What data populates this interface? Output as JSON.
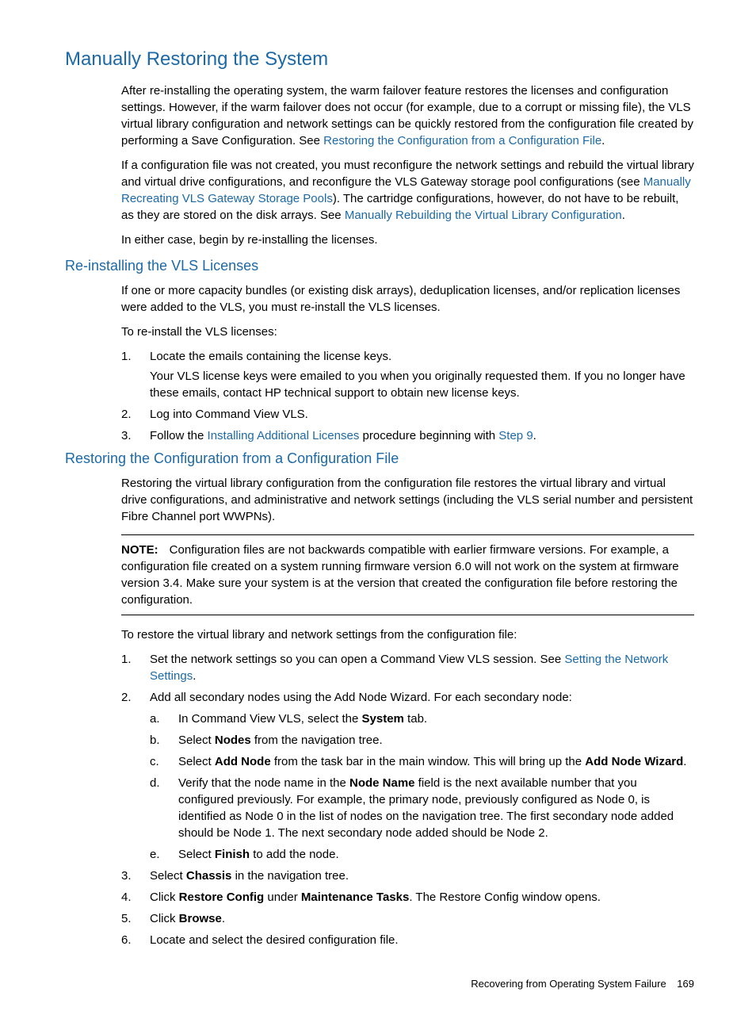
{
  "colors": {
    "link": "#1c69a7",
    "heading": "#1c69a7",
    "text": "#000000",
    "background": "#ffffff",
    "rule": "#000000"
  },
  "typography": {
    "body_fontsize": 15,
    "h1_fontsize": 24,
    "h2_fontsize": 18,
    "footer_fontsize": 13,
    "font_family": "Futura, Trebuchet MS, Arial, sans-serif"
  },
  "h1": "Manually Restoring the System",
  "intro": {
    "p1a": "After re-installing the operating system, the warm failover feature restores the licenses and configuration settings. However, if the warm failover does not occur (for example, due to a corrupt or missing file), the VLS virtual library configuration and network settings can be quickly restored from the configuration file created by performing a Save Configuration. See ",
    "link1": "Restoring the Configuration from a Configuration File",
    "p1b": ".",
    "p2a": "If a configuration file was not created, you must reconfigure the network settings and rebuild the virtual library and virtual drive configurations, and reconfigure the VLS Gateway storage pool configurations (see ",
    "link2": "Manually Recreating VLS Gateway Storage Pools",
    "p2b": "). The cartridge configurations, however, do not have to be rebuilt, as they are stored on the disk arrays. See ",
    "link3": "Manually Rebuilding the Virtual Library Configuration",
    "p2c": ".",
    "p3": "In either case, begin by re-installing the licenses."
  },
  "sec1": {
    "title": "Re-installing the VLS Licenses",
    "p1": "If one or more capacity bundles (or existing disk arrays), deduplication licenses, and/or replication licenses were added to the VLS, you must re-install the VLS licenses.",
    "p2": "To re-install the VLS licenses:",
    "li1": "Locate the emails containing the license keys.",
    "li1_sub": "Your VLS license keys were emailed to you when you originally requested them. If you no longer have these emails, contact HP technical support to obtain new license keys.",
    "li2": "Log into Command View VLS.",
    "li3a": "Follow the ",
    "li3_link1": "Installing Additional Licenses",
    "li3b": " procedure beginning with ",
    "li3_link2": "Step 9",
    "li3c": "."
  },
  "sec2": {
    "title": "Restoring the Configuration from a Configuration File",
    "p1": "Restoring the virtual library configuration from the configuration file restores the virtual library and virtual drive configurations, and administrative and network settings (including the VLS serial number and persistent Fibre Channel port WWPNs).",
    "note_label": "NOTE:",
    "note_body": "Configuration files are not backwards compatible with earlier firmware versions. For example, a configuration file created on a system running firmware version 6.0 will not work on the system at firmware version 3.4. Make sure your system is at the version that created the configuration file before restoring the configuration.",
    "p2": "To restore the virtual library and network settings from the configuration file:",
    "li1a": "Set the network settings so you can open a Command View VLS session. See ",
    "li1_link": "Setting the Network Settings",
    "li1b": ".",
    "li2": "Add all secondary nodes using the Add Node Wizard. For each secondary node:",
    "li2a_a": "In Command View VLS, select the ",
    "li2a_bold": "System",
    "li2a_b": " tab.",
    "li2b_a": "Select ",
    "li2b_bold": "Nodes",
    "li2b_b": " from the navigation tree.",
    "li2c_a": "Select ",
    "li2c_bold1": "Add Node",
    "li2c_b": " from the task bar in the main window. This will bring up the ",
    "li2c_bold2": "Add Node Wizard",
    "li2c_c": ".",
    "li2d_a": "Verify that the node name in the ",
    "li2d_bold": "Node Name",
    "li2d_b": " field is the next available number that you configured previously. For example, the primary node, previously configured as Node 0, is identified as Node 0 in the list of nodes on the navigation tree. The first secondary node added should be Node 1. The next secondary node added should be Node 2.",
    "li2e_a": "Select ",
    "li2e_bold": "Finish",
    "li2e_b": " to add the node.",
    "li3_a": "Select ",
    "li3_bold": "Chassis",
    "li3_b": " in the navigation tree.",
    "li4_a": "Click ",
    "li4_bold1": "Restore Config",
    "li4_b": " under ",
    "li4_bold2": "Maintenance Tasks",
    "li4_c": ". The Restore Config window opens.",
    "li5_a": "Click ",
    "li5_bold": "Browse",
    "li5_b": ".",
    "li6": "Locate and select the desired configuration file."
  },
  "footer": {
    "text": "Recovering from Operating System Failure",
    "page": "169"
  }
}
